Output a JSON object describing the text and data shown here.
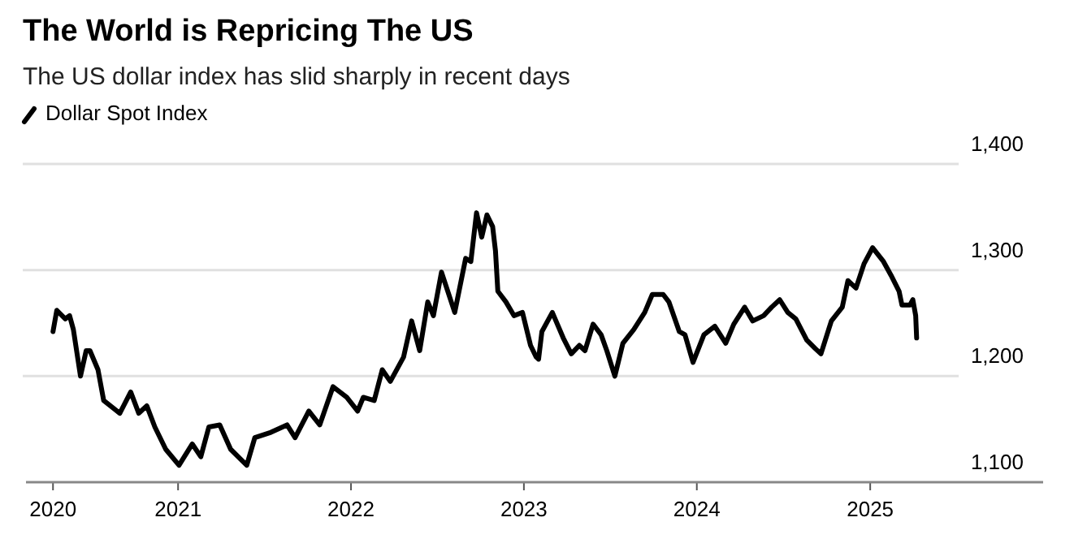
{
  "chart_data": {
    "type": "line",
    "title": "The World is Repricing The US",
    "subtitle": "The US dollar index has slid sharply in recent days",
    "legend": "top left",
    "grid": "y",
    "line_style": "solid",
    "marker": "none",
    "xlim": [
      "2020-02-15",
      "2026-01-01"
    ],
    "xticks": [
      {
        "value": "2020-04-12",
        "label": "2020"
      },
      {
        "value": "2021-01-01",
        "label": "2021"
      },
      {
        "value": "2022-01-01",
        "label": "2022"
      },
      {
        "value": "2023-01-01",
        "label": "2023"
      },
      {
        "value": "2024-01-01",
        "label": "2024"
      },
      {
        "value": "2025-01-01",
        "label": "2025"
      }
    ],
    "ylim": [
      1100,
      1400
    ],
    "yticks": [
      {
        "value": 1100,
        "label": "1,100"
      },
      {
        "value": 1200,
        "label": "1,200"
      },
      {
        "value": 1300,
        "label": "1,300"
      },
      {
        "value": 1400,
        "label": "1,400"
      }
    ],
    "series": [
      {
        "name": "Dollar Spot Index",
        "color": "#000000",
        "x": [
          "2020-04-12",
          "2020-04-20",
          "2020-05-08",
          "2020-05-17",
          "2020-05-25",
          "2020-06-09",
          "2020-06-21",
          "2020-06-29",
          "2020-07-16",
          "2020-07-28",
          "2020-08-31",
          "2020-09-23",
          "2020-10-10",
          "2020-10-27",
          "2020-11-13",
          "2020-12-06",
          "2021-01-03",
          "2021-01-31",
          "2021-02-18",
          "2021-03-07",
          "2021-03-30",
          "2021-04-22",
          "2021-05-26",
          "2021-06-12",
          "2021-07-16",
          "2021-08-19",
          "2021-09-05",
          "2021-10-04",
          "2021-10-27",
          "2021-11-24",
          "2021-12-23",
          "2022-01-15",
          "2022-01-27",
          "2022-02-19",
          "2022-03-08",
          "2022-03-25",
          "2022-04-22",
          "2022-05-09",
          "2022-05-26",
          "2022-06-12",
          "2022-06-24",
          "2022-07-11",
          "2022-08-08",
          "2022-08-31",
          "2022-09-11",
          "2022-09-23",
          "2022-10-04",
          "2022-10-15",
          "2022-10-27",
          "2022-11-02",
          "2022-11-07",
          "2022-11-24",
          "2022-12-11",
          "2022-12-29",
          "2023-01-15",
          "2023-01-27",
          "2023-02-01",
          "2023-02-08",
          "2023-03-02",
          "2023-03-25",
          "2023-04-11",
          "2023-04-28",
          "2023-05-10",
          "2023-05-27",
          "2023-06-13",
          "2023-06-25",
          "2023-07-12",
          "2023-07-29",
          "2023-08-21",
          "2023-09-13",
          "2023-09-29",
          "2023-10-22",
          "2023-11-03",
          "2023-11-25",
          "2023-12-07",
          "2023-12-24",
          "2024-01-16",
          "2024-02-08",
          "2024-03-02",
          "2024-03-19",
          "2024-04-11",
          "2024-04-28",
          "2024-05-21",
          "2024-06-07",
          "2024-06-24",
          "2024-07-11",
          "2024-07-28",
          "2024-08-20",
          "2024-09-07",
          "2024-09-19",
          "2024-10-11",
          "2024-11-03",
          "2024-11-15",
          "2024-12-02",
          "2024-12-19",
          "2025-01-06",
          "2025-01-29",
          "2025-02-14",
          "2025-03-03",
          "2025-03-09",
          "2025-03-26",
          "2025-04-01",
          "2025-04-07",
          "2025-04-09"
        ],
        "values": [
          1242,
          1262,
          1254,
          1257,
          1244,
          1200,
          1224,
          1224,
          1206,
          1177,
          1165,
          1185,
          1165,
          1172,
          1152,
          1131,
          1116,
          1136,
          1124,
          1152,
          1154,
          1131,
          1116,
          1142,
          1147,
          1154,
          1142,
          1167,
          1154,
          1190,
          1180,
          1167,
          1180,
          1177,
          1206,
          1195,
          1218,
          1252,
          1224,
          1270,
          1257,
          1298,
          1260,
          1311,
          1308,
          1354,
          1331,
          1352,
          1341,
          1318,
          1280,
          1270,
          1257,
          1260,
          1229,
          1218,
          1216,
          1242,
          1260,
          1236,
          1221,
          1229,
          1224,
          1249,
          1239,
          1224,
          1200,
          1231,
          1244,
          1260,
          1277,
          1277,
          1270,
          1242,
          1239,
          1213,
          1239,
          1247,
          1231,
          1249,
          1265,
          1252,
          1257,
          1265,
          1272,
          1260,
          1254,
          1234,
          1226,
          1221,
          1252,
          1265,
          1290,
          1283,
          1306,
          1321,
          1308,
          1295,
          1280,
          1267,
          1267,
          1272,
          1257,
          1236
        ]
      }
    ]
  }
}
